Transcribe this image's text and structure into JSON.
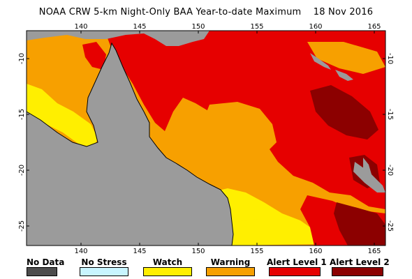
{
  "title": "NOAA CRW 5-km Night-Only BAA Year-to-date Maximum",
  "date": "18 Nov 2016",
  "axes": {
    "lon_ticks": [
      "140",
      "145",
      "150",
      "155",
      "160",
      "165"
    ],
    "lat_ticks": [
      "-10",
      "-15",
      "-20",
      "-25"
    ]
  },
  "colors": {
    "no_data": "#4d4d4d",
    "land": "#9b9b9b",
    "no_stress": "#c8f5ff",
    "watch": "#ffef00",
    "warning": "#f7a000",
    "alert1": "#e60000",
    "alert2": "#8c0000"
  },
  "legend": [
    {
      "label": "No Data",
      "color": "#4d4d4d"
    },
    {
      "label": "No Stress",
      "color": "#c8f5ff"
    },
    {
      "label": "Watch",
      "color": "#ffef00"
    },
    {
      "label": "Warning",
      "color": "#f7a000"
    },
    {
      "label": "Alert Level 1",
      "color": "#e60000"
    },
    {
      "label": "Alert Level 2",
      "color": "#8c0000"
    }
  ]
}
